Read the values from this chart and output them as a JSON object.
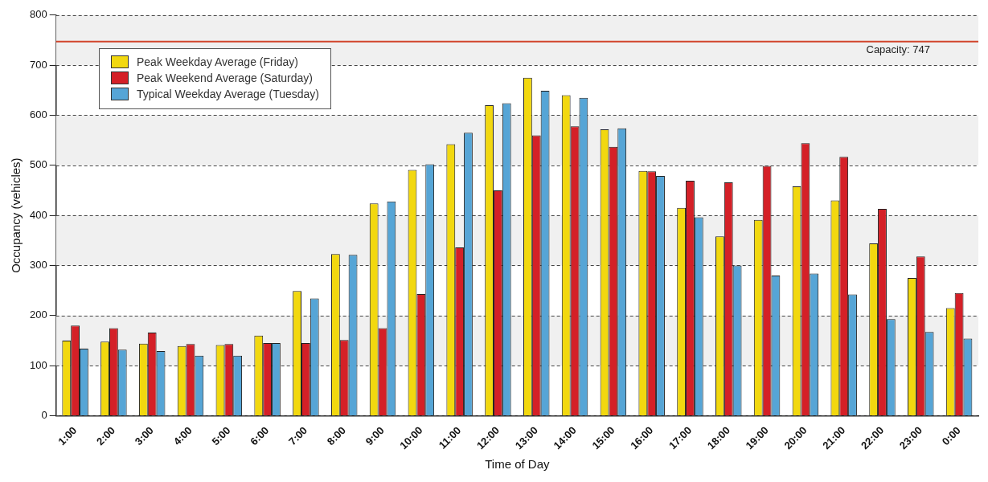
{
  "chart_data": {
    "type": "bar",
    "xlabel": "Time of Day",
    "ylabel": "Occupancy (vehicles)",
    "categories": [
      "1:00",
      "2:00",
      "3:00",
      "4:00",
      "5:00",
      "6:00",
      "7:00",
      "8:00",
      "9:00",
      "10:00",
      "11:00",
      "12:00",
      "13:00",
      "14:00",
      "15:00",
      "16:00",
      "17:00",
      "18:00",
      "19:00",
      "20:00",
      "21:00",
      "22:00",
      "23:00",
      "0:00"
    ],
    "series": [
      {
        "name": "Peak Weekday Average (Friday)",
        "color": "#f2d80f",
        "values": [
          150,
          148,
          144,
          139,
          141,
          160,
          249,
          323,
          424,
          491,
          542,
          620,
          675,
          640,
          572,
          489,
          415,
          358,
          391,
          458,
          430,
          344,
          275,
          215
        ]
      },
      {
        "name": "Peak Weekend Average (Saturday)",
        "color": "#d42027",
        "values": [
          180,
          175,
          166,
          143,
          143,
          145,
          145,
          151,
          175,
          243,
          336,
          450,
          560,
          578,
          537,
          488,
          469,
          466,
          499,
          544,
          517,
          413,
          318,
          245
        ]
      },
      {
        "name": "Typical Weekday Average (Tuesday)",
        "color": "#56a5d6",
        "values": [
          134,
          132,
          129,
          120,
          120,
          145,
          234,
          321,
          428,
          502,
          565,
          624,
          649,
          635,
          574,
          479,
          396,
          300,
          280,
          284,
          242,
          193,
          167,
          154
        ]
      }
    ],
    "ylim": [
      0,
      800
    ],
    "yticks": [
      0,
      100,
      200,
      300,
      400,
      500,
      600,
      700,
      800
    ],
    "grid": "y",
    "legend": "top left",
    "ref_lines": [
      {
        "axis": "y",
        "value": 747,
        "label": "Capacity: 747",
        "color": "#d2452b"
      }
    ]
  }
}
